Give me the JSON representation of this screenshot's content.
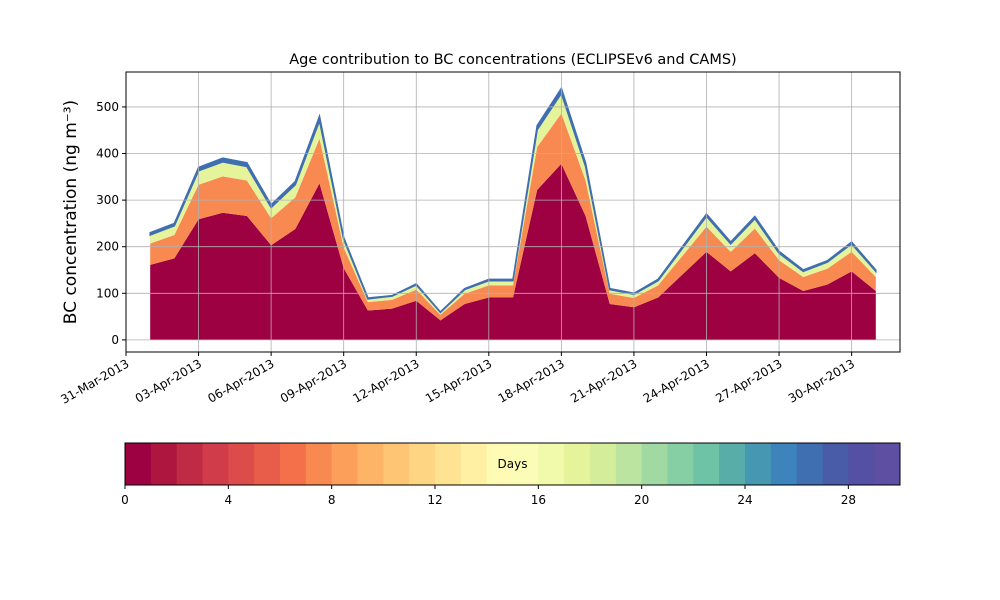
{
  "chart_data": {
    "type": "stacked_area",
    "title": "Age contribution to BC concentrations (ECLIPSEv6 and CAMS)",
    "ylabel": "BC concentration (ng m⁻³)",
    "x": [
      "2013-04-01",
      "2013-04-02",
      "2013-04-03",
      "2013-04-04",
      "2013-04-05",
      "2013-04-06",
      "2013-04-07",
      "2013-04-08",
      "2013-04-09",
      "2013-04-10",
      "2013-04-11",
      "2013-04-12",
      "2013-04-13",
      "2013-04-14",
      "2013-04-15",
      "2013-04-16",
      "2013-04-17",
      "2013-04-18",
      "2013-04-19",
      "2013-04-20",
      "2013-04-21",
      "2013-04-22",
      "2013-04-23",
      "2013-04-24",
      "2013-04-25",
      "2013-04-26",
      "2013-04-27",
      "2013-04-28",
      "2013-04-29",
      "2013-04-30",
      "2013-05-01"
    ],
    "series": [
      {
        "color": "#9e0142",
        "values": [
          161,
          175,
          259,
          273,
          266,
          203,
          238,
          336,
          154,
          63,
          67,
          84,
          42,
          77,
          91,
          91,
          322,
          378,
          266,
          77,
          70,
          91,
          140,
          189,
          147,
          186,
          133,
          105,
          119,
          147,
          105
        ]
      },
      {
        "color": "#f88a51",
        "values": [
          46,
          50,
          74,
          78,
          76,
          58,
          68,
          96,
          44,
          18,
          19,
          24,
          12,
          22,
          26,
          26,
          92,
          108,
          76,
          22,
          20,
          26,
          40,
          54,
          42,
          53,
          38,
          30,
          34,
          42,
          30
        ]
      },
      {
        "color": "#e5f49b",
        "values": [
          18,
          20,
          30,
          31,
          30,
          23,
          27,
          38,
          18,
          7,
          8,
          10,
          5,
          9,
          10,
          10,
          37,
          43,
          30,
          9,
          8,
          10,
          16,
          22,
          17,
          21,
          15,
          12,
          14,
          17,
          12
        ]
      },
      {
        "color": "#3f6fb1",
        "values": [
          5,
          5,
          7,
          8,
          8,
          6,
          7,
          10,
          4,
          2,
          1,
          2,
          1,
          2,
          3,
          3,
          9,
          11,
          8,
          2,
          2,
          3,
          4,
          5,
          4,
          5,
          4,
          3,
          3,
          4,
          3
        ]
      }
    ],
    "xlim": [
      "2013-03-31",
      "2013-05-02"
    ],
    "xticks": [
      {
        "value": "2013-03-31",
        "label": "31-Mar-2013"
      },
      {
        "value": "2013-04-03",
        "label": "03-Apr-2013"
      },
      {
        "value": "2013-04-06",
        "label": "06-Apr-2013"
      },
      {
        "value": "2013-04-09",
        "label": "09-Apr-2013"
      },
      {
        "value": "2013-04-12",
        "label": "12-Apr-2013"
      },
      {
        "value": "2013-04-15",
        "label": "15-Apr-2013"
      },
      {
        "value": "2013-04-18",
        "label": "18-Apr-2013"
      },
      {
        "value": "2013-04-21",
        "label": "21-Apr-2013"
      },
      {
        "value": "2013-04-24",
        "label": "24-Apr-2013"
      },
      {
        "value": "2013-04-27",
        "label": "27-Apr-2013"
      },
      {
        "value": "2013-04-30",
        "label": "30-Apr-2013"
      }
    ],
    "ylim": [
      -26,
      575
    ],
    "yticks": [
      0,
      100,
      200,
      300,
      400,
      500
    ],
    "grid": true,
    "colorbar": {
      "label": "Days",
      "lim": [
        0,
        30
      ],
      "ticks": [
        0,
        4,
        8,
        12,
        16,
        20,
        24,
        28
      ],
      "colors": [
        "#9e0142",
        "#ae163f",
        "#bf2a44",
        "#d13c4b",
        "#dc4c4b",
        "#e75d49",
        "#f3704a",
        "#f88a51",
        "#fb9f5a",
        "#fdb466",
        "#fdc574",
        "#fed583",
        "#fee392",
        "#fff0a3",
        "#fffbb5",
        "#fbfdb7",
        "#f1f9aa",
        "#e5f49b",
        "#d3ed9b",
        "#bbe4a0",
        "#a1d9a3",
        "#86cea4",
        "#6ec2a5",
        "#59ada9",
        "#4698b2",
        "#3c84bb",
        "#3f6fb1",
        "#485ca8",
        "#5450a3",
        "#5e4fa2"
      ]
    }
  }
}
